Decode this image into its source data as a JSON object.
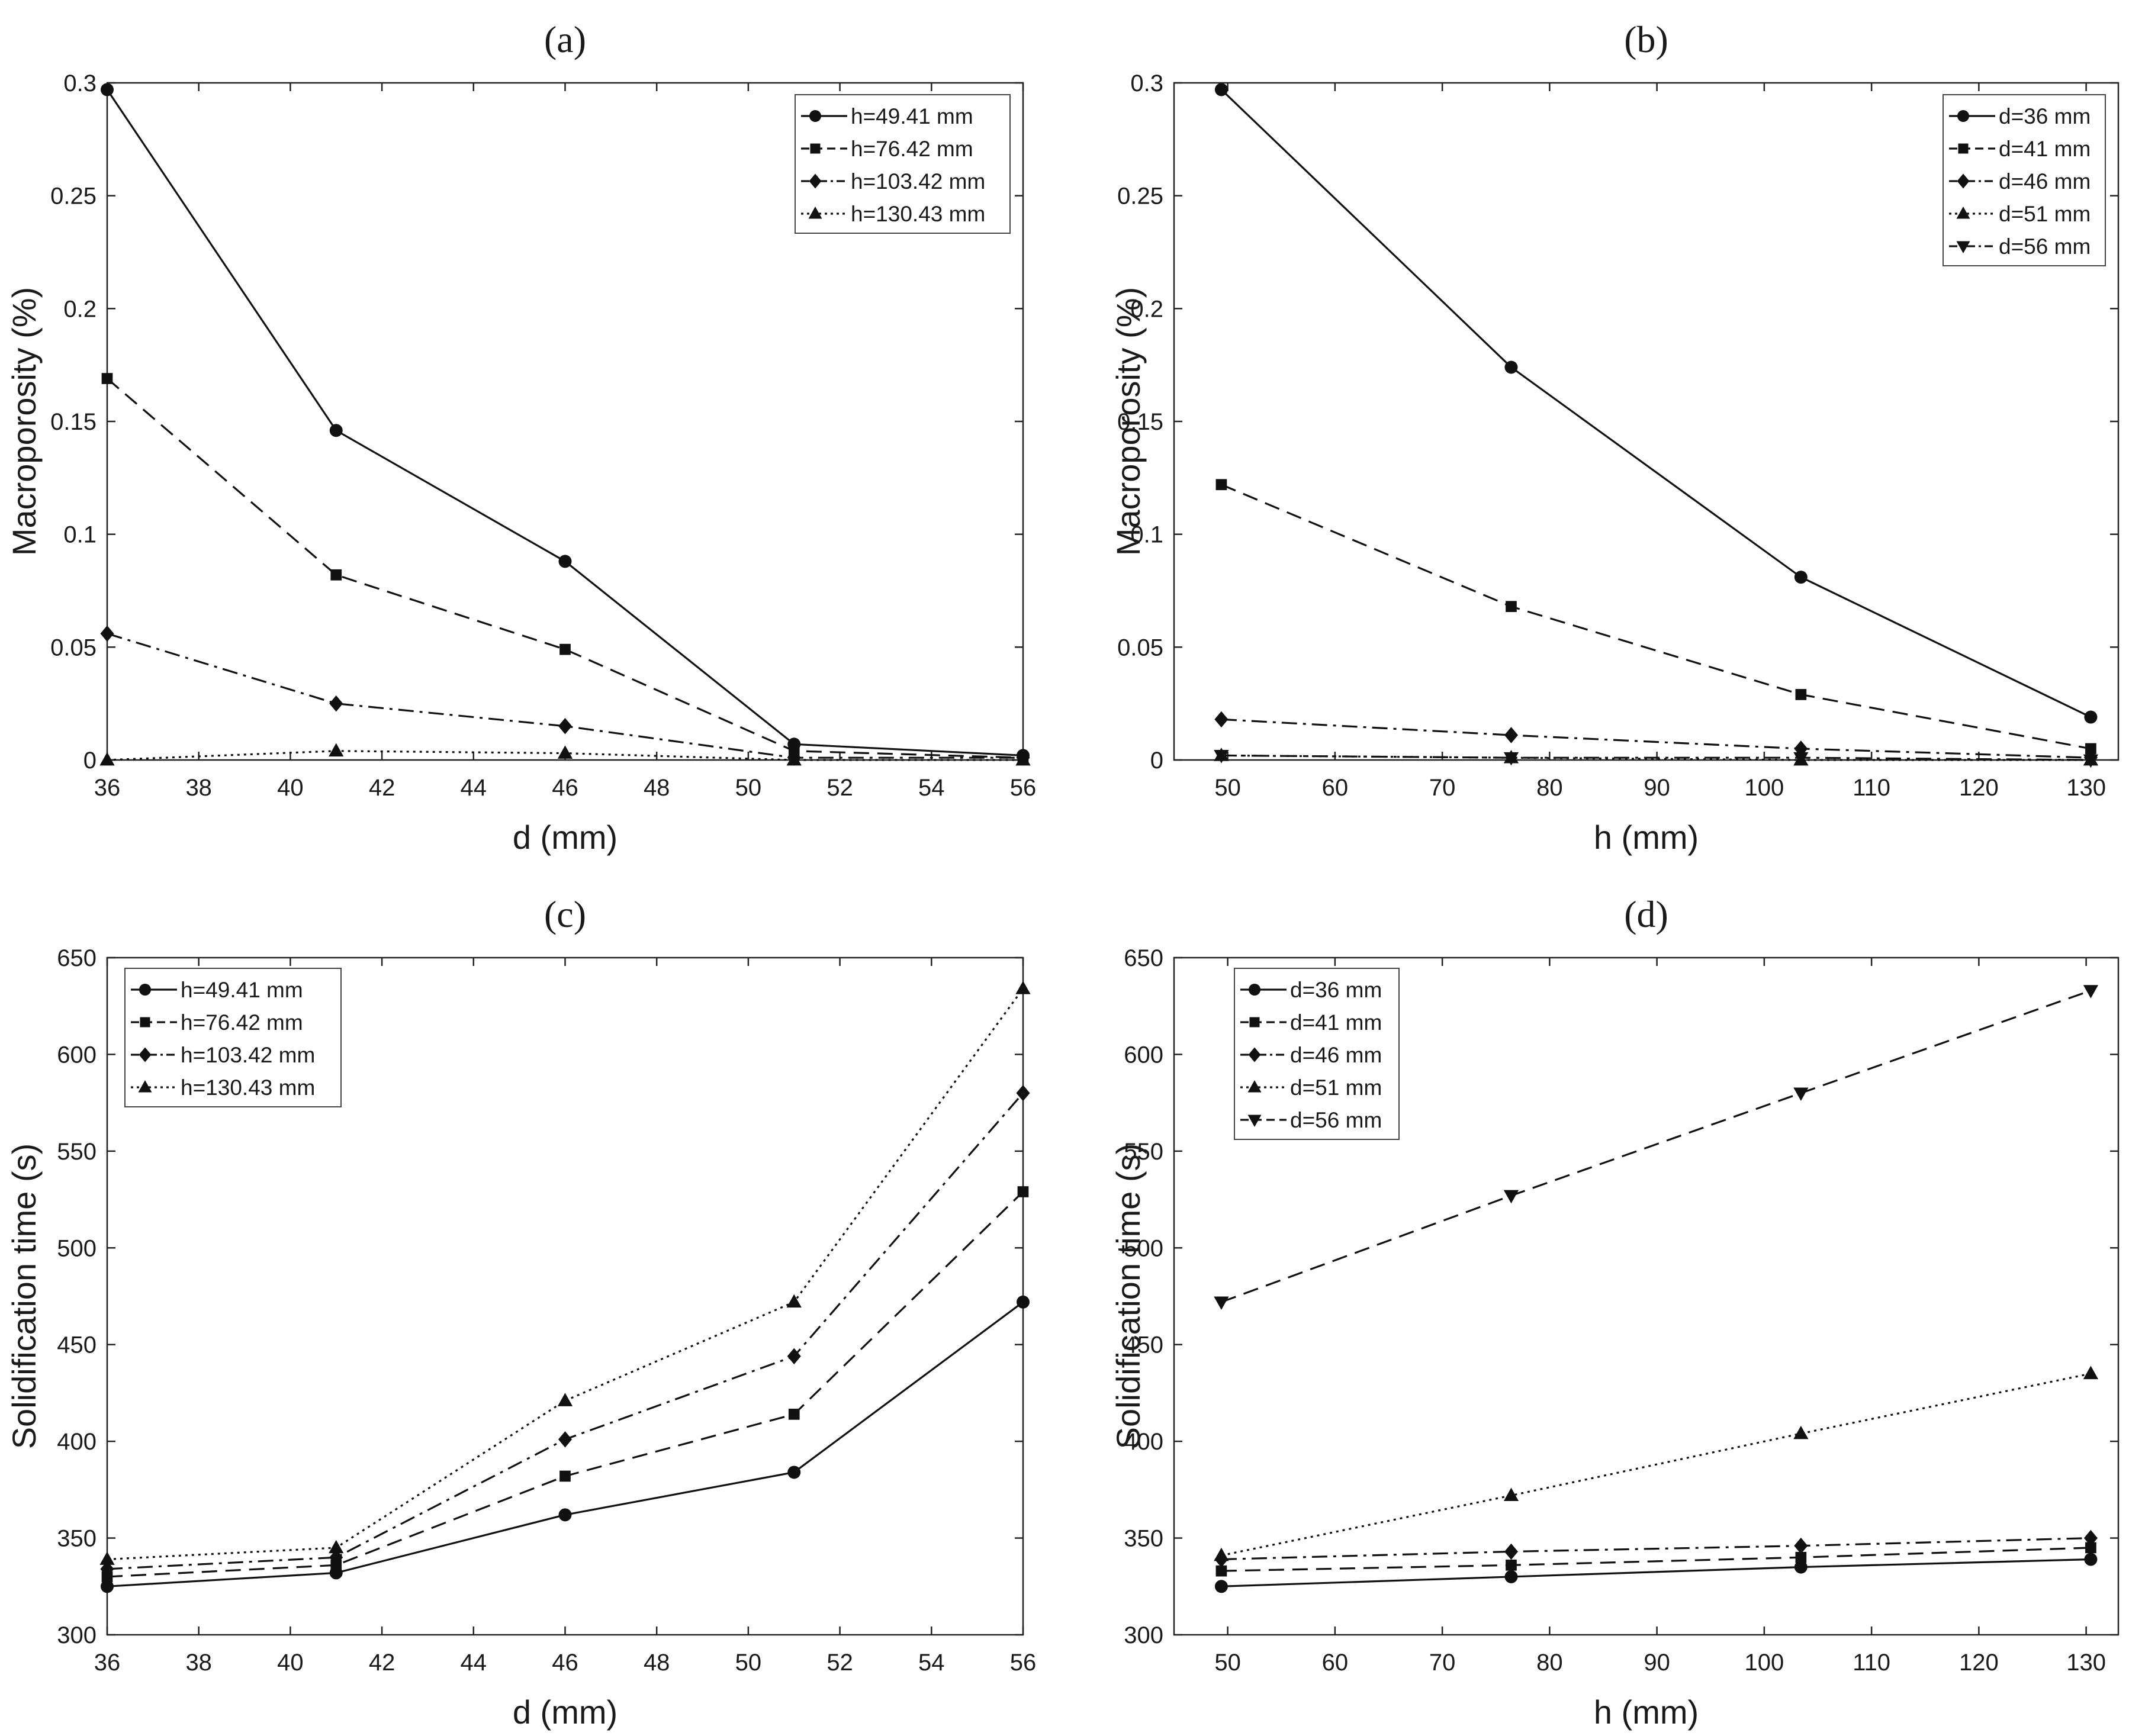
{
  "chart_data": [
    {
      "id": "a",
      "panel_label": "(a)",
      "type": "line",
      "xlabel": "d (mm)",
      "ylabel": "Macroporosity (%)",
      "xlim": [
        36,
        56
      ],
      "ylim": [
        0,
        0.3
      ],
      "xticks": [
        "36",
        "38",
        "40",
        "42",
        "44",
        "46",
        "48",
        "50",
        "52",
        "54",
        "56"
      ],
      "yticks": [
        "0",
        "0.05",
        "0.1",
        "0.15",
        "0.2",
        "0.25",
        "0.3"
      ],
      "legend_position": "top-right",
      "x": [
        36,
        41,
        46,
        51,
        56
      ],
      "series": [
        {
          "name": "h=49.41 mm",
          "marker": "circle",
          "dash": "solid",
          "values": [
            0.297,
            0.146,
            0.088,
            0.007,
            0.002
          ]
        },
        {
          "name": "h=76.42 mm",
          "marker": "square",
          "dash": "dashed",
          "values": [
            0.169,
            0.082,
            0.049,
            0.004,
            0.001
          ]
        },
        {
          "name": "h=103.42 mm",
          "marker": "diamond",
          "dash": "dashdot",
          "values": [
            0.056,
            0.025,
            0.015,
            0.001,
            0.001
          ]
        },
        {
          "name": "h=130.43 mm",
          "marker": "triangle-up",
          "dash": "dotted",
          "values": [
            0.0,
            0.004,
            0.003,
            0.0,
            0.0
          ]
        }
      ]
    },
    {
      "id": "b",
      "panel_label": "(b)",
      "type": "line",
      "xlabel": "h (mm)",
      "ylabel": "Macroporosity (%)",
      "xlim": [
        45,
        133
      ],
      "ylim": [
        0,
        0.3
      ],
      "xticks": [
        "50",
        "60",
        "70",
        "80",
        "90",
        "100",
        "110",
        "120",
        "130"
      ],
      "yticks": [
        "0",
        "0.05",
        "0.1",
        "0.15",
        "0.2",
        "0.25",
        "0.3"
      ],
      "legend_position": "top-right",
      "x": [
        49.41,
        76.42,
        103.42,
        130.43
      ],
      "series": [
        {
          "name": "d=36 mm",
          "marker": "circle",
          "dash": "solid",
          "values": [
            0.297,
            0.174,
            0.081,
            0.019
          ]
        },
        {
          "name": "d=41 mm",
          "marker": "square",
          "dash": "dashed",
          "values": [
            0.122,
            0.068,
            0.029,
            0.005
          ]
        },
        {
          "name": "d=46 mm",
          "marker": "diamond",
          "dash": "dashdot",
          "values": [
            0.018,
            0.011,
            0.005,
            0.001
          ]
        },
        {
          "name": "d=51 mm",
          "marker": "triangle-up",
          "dash": "dotted",
          "values": [
            0.002,
            0.001,
            0.0,
            0.0
          ]
        },
        {
          "name": "d=56 mm",
          "marker": "triangle-down",
          "dash": "dashdot",
          "values": [
            0.002,
            0.001,
            0.001,
            0.0
          ]
        }
      ]
    },
    {
      "id": "c",
      "panel_label": "(c)",
      "type": "line",
      "xlabel": "d (mm)",
      "ylabel": "Solidification time (s)",
      "xlim": [
        36,
        56
      ],
      "ylim": [
        300,
        650
      ],
      "xticks": [
        "36",
        "38",
        "40",
        "42",
        "44",
        "46",
        "48",
        "50",
        "52",
        "54",
        "56"
      ],
      "yticks": [
        "300",
        "350",
        "400",
        "450",
        "500",
        "550",
        "600",
        "650"
      ],
      "legend_position": "top-left",
      "x": [
        36,
        41,
        46,
        51,
        56
      ],
      "series": [
        {
          "name": "h=49.41 mm",
          "marker": "circle",
          "dash": "solid",
          "values": [
            325,
            332,
            362,
            384,
            472
          ]
        },
        {
          "name": "h=76.42 mm",
          "marker": "square",
          "dash": "dashed",
          "values": [
            330,
            336,
            382,
            414,
            529
          ]
        },
        {
          "name": "h=103.42 mm",
          "marker": "diamond",
          "dash": "dashdot",
          "values": [
            334,
            340,
            401,
            444,
            580
          ]
        },
        {
          "name": "h=130.43 mm",
          "marker": "triangle-up",
          "dash": "dotted",
          "values": [
            339,
            345,
            421,
            472,
            634
          ]
        }
      ]
    },
    {
      "id": "d",
      "panel_label": "(d)",
      "type": "line",
      "xlabel": "h (mm)",
      "ylabel": "Solidification time (s)",
      "xlim": [
        45,
        133
      ],
      "ylim": [
        300,
        650
      ],
      "xticks": [
        "50",
        "60",
        "70",
        "80",
        "90",
        "100",
        "110",
        "120",
        "130"
      ],
      "yticks": [
        "300",
        "350",
        "400",
        "450",
        "500",
        "550",
        "600",
        "650"
      ],
      "legend_position": "top-left",
      "x": [
        49.41,
        76.42,
        103.42,
        130.43
      ],
      "series": [
        {
          "name": "d=36 mm",
          "marker": "circle",
          "dash": "solid",
          "values": [
            325,
            330,
            335,
            339
          ]
        },
        {
          "name": "d=41 mm",
          "marker": "square",
          "dash": "dashed",
          "values": [
            333,
            336,
            340,
            345
          ]
        },
        {
          "name": "d=46 mm",
          "marker": "diamond",
          "dash": "dashdot",
          "values": [
            339,
            343,
            346,
            350
          ]
        },
        {
          "name": "d=51 mm",
          "marker": "triangle-up",
          "dash": "dotted",
          "values": [
            341,
            372,
            404,
            435
          ]
        },
        {
          "name": "d=56 mm",
          "marker": "triangle-down",
          "dash": "dashed",
          "values": [
            472,
            527,
            580,
            633
          ]
        }
      ]
    }
  ]
}
